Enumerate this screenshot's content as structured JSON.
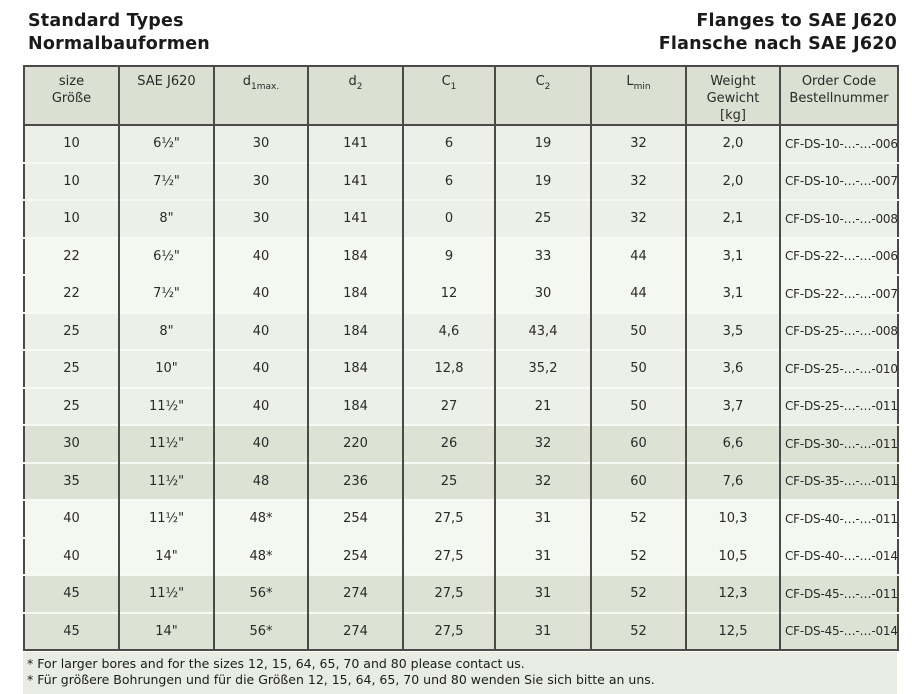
{
  "page": {
    "title_left": [
      "Standard Types",
      "Normalbauformen"
    ],
    "title_right": [
      "Flanges to SAE J620",
      "Flansche nach SAE J620"
    ]
  },
  "table": {
    "columns": [
      {
        "id": "size",
        "lines": [
          "size",
          "Größe"
        ]
      },
      {
        "id": "sae",
        "lines": [
          "SAE J620"
        ]
      },
      {
        "id": "d1max",
        "main": "d",
        "sub": "1max."
      },
      {
        "id": "d2",
        "main": "d",
        "sub": "2"
      },
      {
        "id": "c1",
        "main": "C",
        "sub": "1"
      },
      {
        "id": "c2",
        "main": "C",
        "sub": "2"
      },
      {
        "id": "lmin",
        "main": "L",
        "sub": "min"
      },
      {
        "id": "weight",
        "lines": [
          "Weight",
          "Gewicht",
          "[kg]"
        ]
      },
      {
        "id": "order",
        "lines": [
          "Order Code",
          "Bestellnummer"
        ]
      }
    ],
    "rows": [
      {
        "size": "10",
        "sae": "6½\"",
        "d1max": "30",
        "d2": "141",
        "c1": "6",
        "c2": "19",
        "lmin": "32",
        "weight": "2,0",
        "order": "CF-DS-10-…-…-006",
        "shade": "light"
      },
      {
        "size": "10",
        "sae": "7½\"",
        "d1max": "30",
        "d2": "141",
        "c1": "6",
        "c2": "19",
        "lmin": "32",
        "weight": "2,0",
        "order": "CF-DS-10-…-…-007",
        "shade": "light"
      },
      {
        "size": "10",
        "sae": "8\"",
        "d1max": "30",
        "d2": "141",
        "c1": "0",
        "c2": "25",
        "lmin": "32",
        "weight": "2,1",
        "order": "CF-DS-10-…-…-008",
        "shade": "light"
      },
      {
        "size": "22",
        "sae": "6½\"",
        "d1max": "40",
        "d2": "184",
        "c1": "9",
        "c2": "33",
        "lmin": "44",
        "weight": "3,1",
        "order": "CF-DS-22-…-…-006",
        "shade": "lighter"
      },
      {
        "size": "22",
        "sae": "7½\"",
        "d1max": "40",
        "d2": "184",
        "c1": "12",
        "c2": "30",
        "lmin": "44",
        "weight": "3,1",
        "order": "CF-DS-22-…-…-007",
        "shade": "lighter"
      },
      {
        "size": "25",
        "sae": "8\"",
        "d1max": "40",
        "d2": "184",
        "c1": "4,6",
        "c2": "43,4",
        "lmin": "50",
        "weight": "3,5",
        "order": "CF-DS-25-…-…-008",
        "shade": "light"
      },
      {
        "size": "25",
        "sae": "10\"",
        "d1max": "40",
        "d2": "184",
        "c1": "12,8",
        "c2": "35,2",
        "lmin": "50",
        "weight": "3,6",
        "order": "CF-DS-25-…-…-010",
        "shade": "light"
      },
      {
        "size": "25",
        "sae": "11½\"",
        "d1max": "40",
        "d2": "184",
        "c1": "27",
        "c2": "21",
        "lmin": "50",
        "weight": "3,7",
        "order": "CF-DS-25-…-…-011",
        "shade": "light"
      },
      {
        "size": "30",
        "sae": "11½\"",
        "d1max": "40",
        "d2": "220",
        "c1": "26",
        "c2": "32",
        "lmin": "60",
        "weight": "6,6",
        "order": "CF-DS-30-…-…-011",
        "shade": "dark"
      },
      {
        "size": "35",
        "sae": "11½\"",
        "d1max": "48",
        "d2": "236",
        "c1": "25",
        "c2": "32",
        "lmin": "60",
        "weight": "7,6",
        "order": "CF-DS-35-…-…-011",
        "shade": "dark"
      },
      {
        "size": "40",
        "sae": "11½\"",
        "d1max": "48*",
        "d2": "254",
        "c1": "27,5",
        "c2": "31",
        "lmin": "52",
        "weight": "10,3",
        "order": "CF-DS-40-…-…-011",
        "shade": "lighter"
      },
      {
        "size": "40",
        "sae": "14\"",
        "d1max": "48*",
        "d2": "254",
        "c1": "27,5",
        "c2": "31",
        "lmin": "52",
        "weight": "10,5",
        "order": "CF-DS-40-…-…-014",
        "shade": "lighter"
      },
      {
        "size": "45",
        "sae": "11½\"",
        "d1max": "56*",
        "d2": "274",
        "c1": "27,5",
        "c2": "31",
        "lmin": "52",
        "weight": "12,3",
        "order": "CF-DS-45-…-…-011",
        "shade": "dark"
      },
      {
        "size": "45",
        "sae": "14\"",
        "d1max": "56*",
        "d2": "274",
        "c1": "27,5",
        "c2": "31",
        "lmin": "52",
        "weight": "12,5",
        "order": "CF-DS-45-…-…-014",
        "shade": "dark"
      }
    ]
  },
  "footnotes": [
    "* For larger bores and for the sizes 12, 15, 64, 65, 70 and 80 please contact us.",
    "* Für größere Bohrungen und für die Größen 12, 15, 64, 65, 70 und 80 wenden Sie sich bitte an uns."
  ],
  "colors": {
    "header_bg": "#dbe0d2",
    "row_light": "#edf0e8",
    "row_lighter": "#f5f7f1",
    "row_dark": "#dde2d5",
    "footnote_bg": "#e9ece3",
    "border_dark": "#4a4a4a"
  }
}
